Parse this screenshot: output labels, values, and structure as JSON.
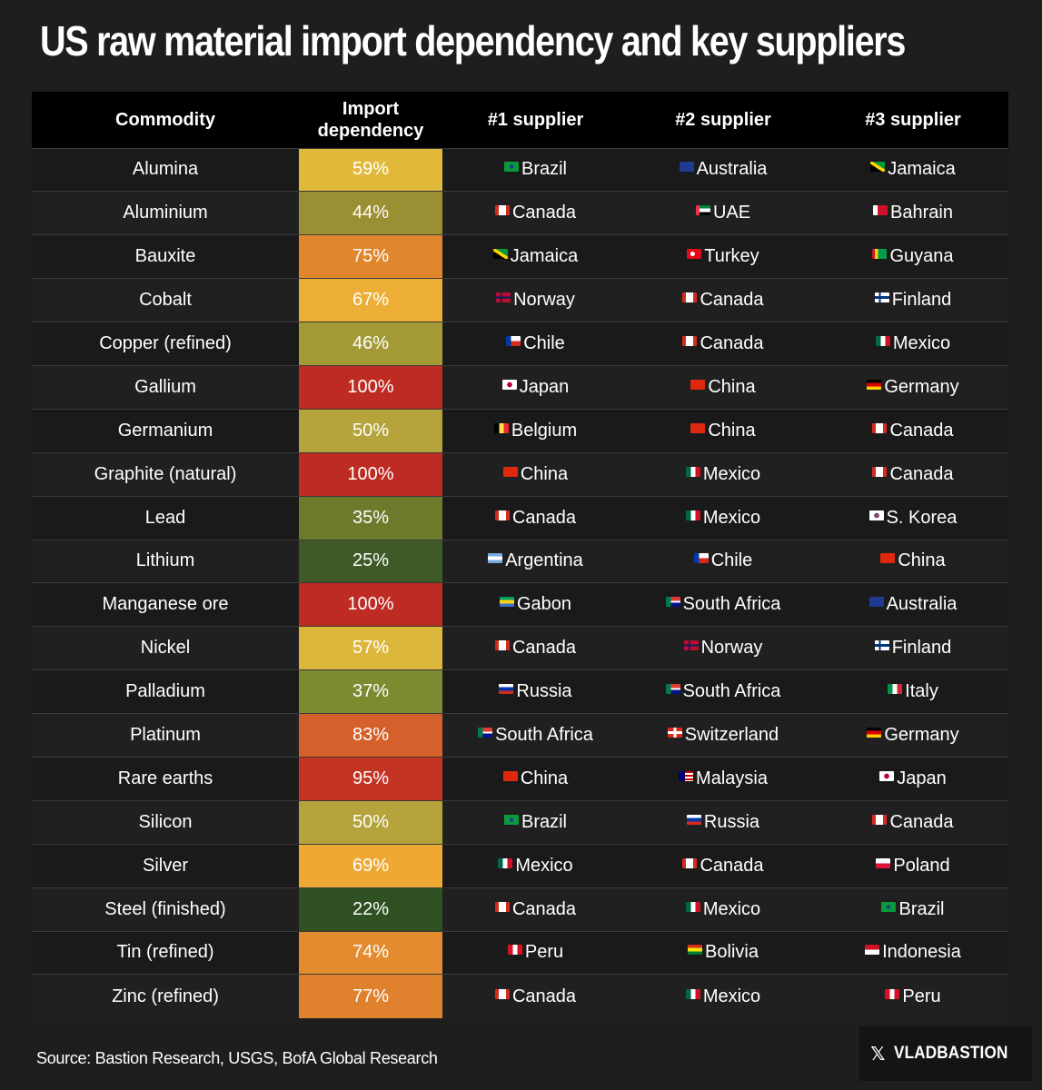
{
  "title": "US raw material import dependency and key suppliers",
  "headers": {
    "commodity": "Commodity",
    "dependency_line1": "Import",
    "dependency_line2": "dependency",
    "s1": "#1 supplier",
    "s2": "#2 supplier",
    "s3": "#3 supplier"
  },
  "source": "Source: Bastion Research, USGS, BofA Global Research",
  "badge": {
    "icon": "x-logo-icon",
    "symbol": "𝕏",
    "handle": "VLADBASTION"
  },
  "chart_data": {
    "type": "table",
    "columns": [
      "Commodity",
      "Import dependency",
      "#1 supplier",
      "#2 supplier",
      "#3 supplier"
    ],
    "rows": [
      {
        "commodity": "Alumina",
        "dependency": "59%",
        "value": 59,
        "color": "#e0b93a",
        "suppliers": [
          "Brazil",
          "Australia",
          "Jamaica"
        ],
        "flags": [
          "br",
          "au",
          "jm"
        ]
      },
      {
        "commodity": "Aluminium",
        "dependency": "44%",
        "value": 44,
        "color": "#9a8f32",
        "suppliers": [
          "Canada",
          "UAE",
          "Bahrain"
        ],
        "flags": [
          "ca",
          "ae",
          "bh"
        ]
      },
      {
        "commodity": "Bauxite",
        "dependency": "75%",
        "value": 75,
        "color": "#e0872d",
        "suppliers": [
          "Jamaica",
          "Turkey",
          "Guyana"
        ],
        "flags": [
          "jm",
          "tr",
          "gy"
        ]
      },
      {
        "commodity": "Cobalt",
        "dependency": "67%",
        "value": 67,
        "color": "#edae37",
        "suppliers": [
          "Norway",
          "Canada",
          "Finland"
        ],
        "flags": [
          "no",
          "ca",
          "fi"
        ]
      },
      {
        "commodity": "Copper (refined)",
        "dependency": "46%",
        "value": 46,
        "color": "#a39a36",
        "suppliers": [
          "Chile",
          "Canada",
          "Mexico"
        ],
        "flags": [
          "cl",
          "ca",
          "mx"
        ]
      },
      {
        "commodity": "Gallium",
        "dependency": "100%",
        "value": 100,
        "color": "#be2b22",
        "suppliers": [
          "Japan",
          "China",
          "Germany"
        ],
        "flags": [
          "jp",
          "cn",
          "de"
        ]
      },
      {
        "commodity": "Germanium",
        "dependency": "50%",
        "value": 50,
        "color": "#b4a43b",
        "suppliers": [
          "Belgium",
          "China",
          "Canada"
        ],
        "flags": [
          "be",
          "cn",
          "ca"
        ]
      },
      {
        "commodity": "Graphite (natural)",
        "dependency": "100%",
        "value": 100,
        "color": "#be2b22",
        "suppliers": [
          "China",
          "Mexico",
          "Canada"
        ],
        "flags": [
          "cn",
          "mx",
          "ca"
        ]
      },
      {
        "commodity": "Lead",
        "dependency": "35%",
        "value": 35,
        "color": "#6c7a2c",
        "suppliers": [
          "Canada",
          "Mexico",
          "S. Korea"
        ],
        "flags": [
          "ca",
          "mx",
          "kr"
        ]
      },
      {
        "commodity": "Lithium",
        "dependency": "25%",
        "value": 25,
        "color": "#3f5a26",
        "suppliers": [
          "Argentina",
          "Chile",
          "China"
        ],
        "flags": [
          "ar",
          "cl",
          "cn"
        ]
      },
      {
        "commodity": "Manganese ore",
        "dependency": "100%",
        "value": 100,
        "color": "#be2b22",
        "suppliers": [
          "Gabon",
          "South Africa",
          "Australia"
        ],
        "flags": [
          "ga",
          "za",
          "au"
        ]
      },
      {
        "commodity": "Nickel",
        "dependency": "57%",
        "value": 57,
        "color": "#dcb73b",
        "suppliers": [
          "Canada",
          "Norway",
          "Finland"
        ],
        "flags": [
          "ca",
          "no",
          "fi"
        ]
      },
      {
        "commodity": "Palladium",
        "dependency": "37%",
        "value": 37,
        "color": "#7d8a30",
        "suppliers": [
          "Russia",
          "South Africa",
          "Italy"
        ],
        "flags": [
          "ru",
          "za",
          "it"
        ]
      },
      {
        "commodity": "Platinum",
        "dependency": "83%",
        "value": 83,
        "color": "#d4612b",
        "suppliers": [
          "South Africa",
          "Switzerland",
          "Germany"
        ],
        "flags": [
          "za",
          "ch",
          "de"
        ]
      },
      {
        "commodity": "Rare earths",
        "dependency": "95%",
        "value": 95,
        "color": "#c43423",
        "suppliers": [
          "China",
          "Malaysia",
          "Japan"
        ],
        "flags": [
          "cn",
          "my",
          "jp"
        ]
      },
      {
        "commodity": "Silicon",
        "dependency": "50%",
        "value": 50,
        "color": "#b4a43b",
        "suppliers": [
          "Brazil",
          "Russia",
          "Canada"
        ],
        "flags": [
          "br",
          "ru",
          "ca"
        ]
      },
      {
        "commodity": "Silver",
        "dependency": "69%",
        "value": 69,
        "color": "#eea935",
        "suppliers": [
          "Mexico",
          "Canada",
          "Poland"
        ],
        "flags": [
          "mx",
          "ca",
          "pl"
        ]
      },
      {
        "commodity": "Steel (finished)",
        "dependency": "22%",
        "value": 22,
        "color": "#2e5022",
        "suppliers": [
          "Canada",
          "Mexico",
          "Brazil"
        ],
        "flags": [
          "ca",
          "mx",
          "br"
        ]
      },
      {
        "commodity": "Tin (refined)",
        "dependency": "74%",
        "value": 74,
        "color": "#e28c2f",
        "suppliers": [
          "Peru",
          "Bolivia",
          "Indonesia"
        ],
        "flags": [
          "pe",
          "bo",
          "id"
        ]
      },
      {
        "commodity": "Zinc (refined)",
        "dependency": "77%",
        "value": 77,
        "color": "#e0822d",
        "suppliers": [
          "Canada",
          "Mexico",
          "Peru"
        ],
        "flags": [
          "ca",
          "mx",
          "pe"
        ]
      }
    ]
  }
}
